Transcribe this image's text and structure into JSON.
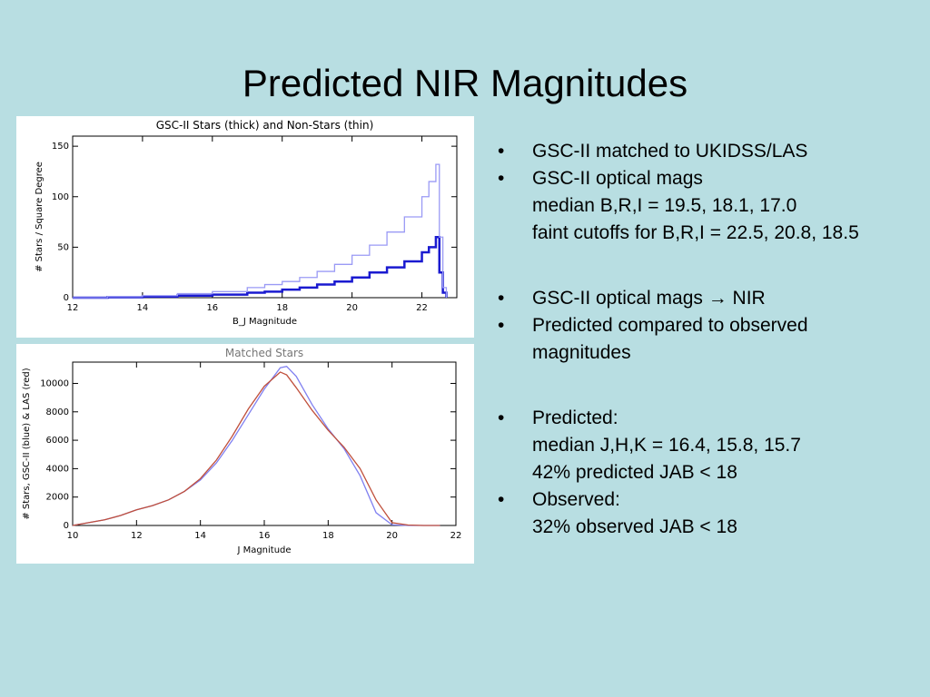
{
  "slide": {
    "title": "Predicted NIR Magnitudes"
  },
  "bullets": [
    {
      "lines": [
        "GSC-II matched to UKIDSS/LAS"
      ]
    },
    {
      "lines": [
        "GSC-II optical mags",
        "median B,R,I = 19.5, 18.1, 17.0",
        "faint cutoffs for B,R,I = 22.5, 20.8, 18.5"
      ]
    },
    {
      "lines": [
        "GSC-II optical mags → NIR"
      ]
    },
    {
      "lines": [
        "Predicted compared to observed magnitudes"
      ]
    },
    {
      "lines": [
        "Predicted:",
        "median J,H,K = 16.4, 15.8, 15.7",
        "42%  predicted JAB < 18"
      ]
    },
    {
      "lines": [
        "Observed:",
        "32% observed JAB < 18"
      ]
    }
  ],
  "chart_data": [
    {
      "type": "line",
      "title": "GSC-II Stars (thick) and Non-Stars (thin)",
      "xlabel": "B_J Magnitude",
      "ylabel": "# Stars / Square Degree",
      "xlim": [
        12,
        23
      ],
      "ylim": [
        0,
        160
      ],
      "xticks": [
        12,
        14,
        16,
        18,
        20,
        22
      ],
      "yticks": [
        0,
        50,
        100,
        150
      ],
      "step": true,
      "series": [
        {
          "name": "Stars (thick)",
          "color": "#1a1ad0",
          "x": [
            12.0,
            13.0,
            14.0,
            15.0,
            16.0,
            17.0,
            17.5,
            18.0,
            18.5,
            19.0,
            19.5,
            20.0,
            20.5,
            21.0,
            21.5,
            22.0,
            22.2,
            22.4,
            22.5,
            22.6,
            22.7
          ],
          "y": [
            0,
            0.5,
            1,
            2,
            3,
            5,
            6,
            8,
            10,
            13,
            16,
            20,
            25,
            30,
            36,
            45,
            50,
            60,
            25,
            5,
            0
          ]
        },
        {
          "name": "Non-Stars (thin)",
          "color": "#9a9af5",
          "x": [
            12.0,
            13.0,
            14.0,
            15.0,
            16.0,
            17.0,
            17.5,
            18.0,
            18.5,
            19.0,
            19.5,
            20.0,
            20.5,
            21.0,
            21.5,
            22.0,
            22.2,
            22.4,
            22.5,
            22.6,
            22.7
          ],
          "y": [
            0,
            1,
            2,
            4,
            6,
            10,
            13,
            16,
            20,
            26,
            33,
            42,
            52,
            65,
            80,
            100,
            115,
            132,
            60,
            10,
            0
          ]
        }
      ]
    },
    {
      "type": "line",
      "title": "Matched Stars",
      "xlabel": "J Magnitude",
      "ylabel": "# Stars, GSC-II (blue) & LAS (red)",
      "xlim": [
        10,
        22
      ],
      "ylim": [
        0,
        11500
      ],
      "xticks": [
        10,
        12,
        14,
        16,
        18,
        20,
        22
      ],
      "yticks": [
        0,
        2000,
        4000,
        6000,
        8000,
        10000
      ],
      "series": [
        {
          "name": "GSC-II",
          "color": "#8080f0",
          "x": [
            10.0,
            10.5,
            11.0,
            11.5,
            12.0,
            12.5,
            13.0,
            13.5,
            14.0,
            14.5,
            15.0,
            15.5,
            16.0,
            16.5,
            16.7,
            17.0,
            17.5,
            18.0,
            18.5,
            19.0,
            19.5,
            20.0,
            20.5,
            21.0,
            21.5
          ],
          "y": [
            0,
            200,
            400,
            700,
            1100,
            1400,
            1800,
            2400,
            3200,
            4400,
            6000,
            7800,
            9600,
            11100,
            11200,
            10500,
            8500,
            6800,
            5400,
            3500,
            900,
            50,
            0,
            0,
            0
          ]
        },
        {
          "name": "LAS",
          "color": "#c0503c",
          "x": [
            10.0,
            10.5,
            11.0,
            11.5,
            12.0,
            12.5,
            13.0,
            13.5,
            14.0,
            14.5,
            15.0,
            15.5,
            16.0,
            16.5,
            16.7,
            17.0,
            17.5,
            18.0,
            18.5,
            19.0,
            19.5,
            20.0,
            20.5,
            21.0,
            21.5
          ],
          "y": [
            0,
            200,
            400,
            700,
            1100,
            1400,
            1800,
            2400,
            3300,
            4600,
            6300,
            8200,
            9800,
            10800,
            10600,
            9700,
            8100,
            6700,
            5500,
            4000,
            1800,
            200,
            30,
            0,
            0
          ]
        }
      ]
    }
  ]
}
